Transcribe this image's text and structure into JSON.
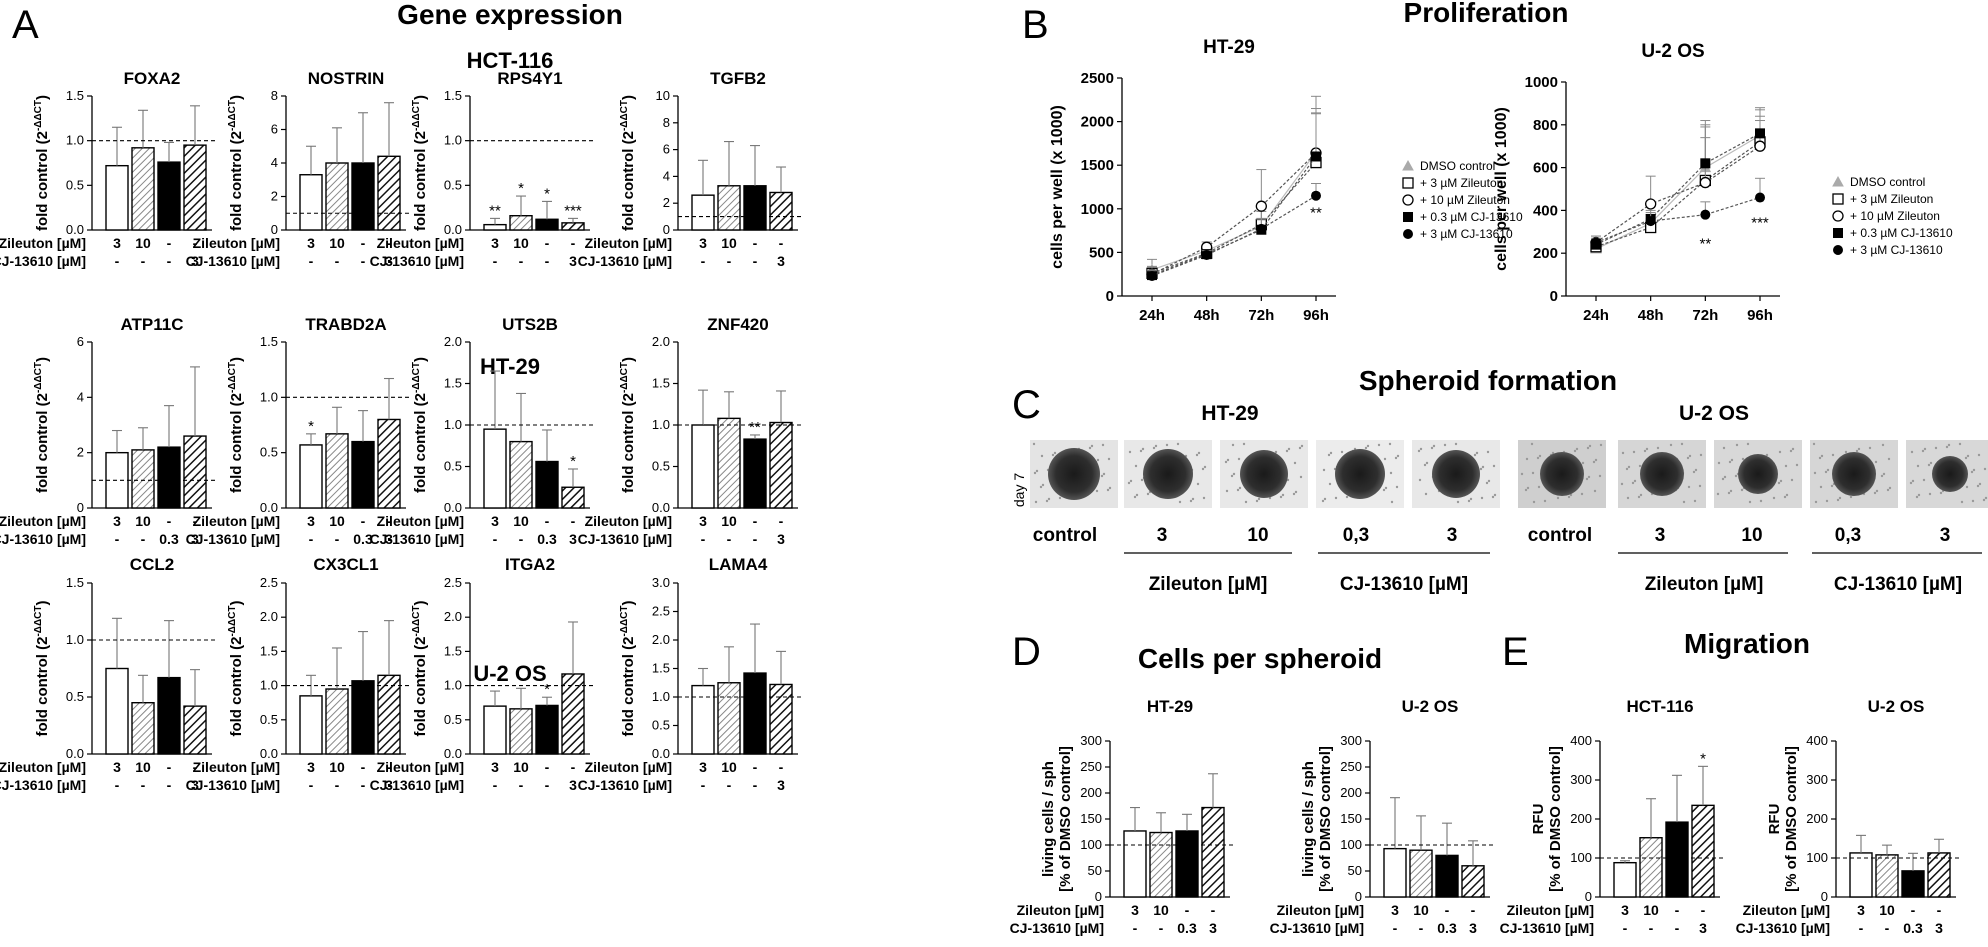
{
  "panel_letters": {
    "A": "A",
    "B": "B",
    "C": "C",
    "D": "D",
    "E": "E"
  },
  "titles": {
    "gene_expression": "Gene expression",
    "proliferation": "Proliferation",
    "spheroid": "Spheroid formation",
    "cells_per_spheroid": "Cells per spheroid",
    "migration": "Migration"
  },
  "group_titles": {
    "hct": "HCT-116",
    "ht": "HT-29",
    "uos": "U-2 OS"
  },
  "treat_labels": {
    "zileuton": "Zileuton [µM]",
    "cj": "CJ-13610 [µM]"
  },
  "ylabel_fold": "fold control (2",
  "ylabel_fold_sup": "-ΔΔCT",
  "ylabel_fold_end": ")",
  "ylabel_spher_1": "living cells / sph",
  "ylabel_spher_2": "[% of DMSO control]",
  "ylabel_mig_1": "RFU",
  "ylabel_mig_2": "[% of DMSO control]",
  "ylabel_prolif": "cells per well (x 1000)",
  "day7": "day 7",
  "spheroid_labels": {
    "control": "control",
    "z3": "3",
    "z10": "10",
    "c03": "0,3",
    "c3": "3",
    "zileuton": "Zileuton [µM]",
    "cj": "CJ-13610 [µM]"
  },
  "legend": [
    "DMSO control",
    "+ 3 µM Zileuton",
    "+ 10 µM Zileuton",
    "+ 0.3 µM CJ-13610",
    "+ 3 µM CJ-13610"
  ],
  "chart_data": [
    {
      "type": "bar",
      "title": "FOXA2",
      "ylim": [
        0,
        1.5
      ],
      "yticks": [
        "0.0",
        "0.5",
        "1.0",
        "1.5"
      ],
      "ref": 1.0,
      "values": [
        0.72,
        0.92,
        0.76,
        0.95
      ],
      "errors": [
        0.43,
        0.42,
        0.22,
        0.44
      ],
      "stars": [
        "",
        "",
        "",
        ""
      ],
      "treat": {
        "zileuton": [
          "3",
          "10",
          "-",
          "-"
        ],
        "cj": [
          "-",
          "-",
          "-",
          "3"
        ]
      }
    },
    {
      "type": "bar",
      "title": "NOSTRIN",
      "ylim": [
        0,
        8
      ],
      "yticks": [
        "0",
        "2",
        "4",
        "6",
        "8"
      ],
      "ref": 1.0,
      "values": [
        3.3,
        4.0,
        4.0,
        4.4
      ],
      "errors": [
        1.7,
        2.1,
        3.0,
        3.2
      ],
      "stars": [
        "",
        "",
        "",
        ""
      ],
      "treat": {
        "zileuton": [
          "3",
          "10",
          "-",
          "-"
        ],
        "cj": [
          "-",
          "-",
          "-",
          "3"
        ]
      }
    },
    {
      "type": "bar",
      "title": "RPS4Y1",
      "ylim": [
        0,
        1.5
      ],
      "yticks": [
        "0.0",
        "0.5",
        "1.0",
        "1.5"
      ],
      "ref": 1.0,
      "values": [
        0.06,
        0.16,
        0.12,
        0.08
      ],
      "errors": [
        0.07,
        0.22,
        0.2,
        0.05
      ],
      "stars": [
        "**",
        "*",
        "*",
        "***"
      ],
      "treat": {
        "zileuton": [
          "3",
          "10",
          "-",
          "-"
        ],
        "cj": [
          "-",
          "-",
          "-",
          "3"
        ]
      }
    },
    {
      "type": "bar",
      "title": "TGFB2",
      "ylim": [
        0,
        10
      ],
      "yticks": [
        "0",
        "2",
        "4",
        "6",
        "8",
        "10"
      ],
      "ref": 1.0,
      "values": [
        2.6,
        3.3,
        3.3,
        2.8
      ],
      "errors": [
        2.6,
        3.3,
        3.0,
        1.9
      ],
      "stars": [
        "",
        "",
        "",
        ""
      ],
      "treat": {
        "zileuton": [
          "3",
          "10",
          "-",
          "-"
        ],
        "cj": [
          "-",
          "-",
          "-",
          "3"
        ]
      }
    },
    {
      "type": "bar",
      "title": "ATP11C",
      "ylim": [
        0,
        6
      ],
      "yticks": [
        "0",
        "2",
        "4",
        "6"
      ],
      "ref": 1.0,
      "values": [
        2.0,
        2.1,
        2.2,
        2.6
      ],
      "errors": [
        0.8,
        0.8,
        1.5,
        2.5
      ],
      "stars": [
        "",
        "",
        "",
        ""
      ],
      "treat": {
        "zileuton": [
          "3",
          "10",
          "-",
          "-"
        ],
        "cj": [
          "-",
          "-",
          "0.3",
          "3"
        ]
      }
    },
    {
      "type": "bar",
      "title": "TRABD2A",
      "ylim": [
        0,
        1.5
      ],
      "yticks": [
        "0.0",
        "0.5",
        "1.0",
        "1.5"
      ],
      "ref": 1.0,
      "values": [
        0.57,
        0.67,
        0.6,
        0.8
      ],
      "errors": [
        0.1,
        0.24,
        0.28,
        0.37
      ],
      "stars": [
        "*",
        "",
        "",
        ""
      ],
      "treat": {
        "zileuton": [
          "3",
          "10",
          "-",
          "-"
        ],
        "cj": [
          "-",
          "-",
          "0.3",
          "3"
        ]
      }
    },
    {
      "type": "bar",
      "title": "UTS2B",
      "ylim": [
        0,
        2.0
      ],
      "yticks": [
        "0.0",
        "0.5",
        "1.0",
        "1.5",
        "2.0"
      ],
      "ref": 1.0,
      "values": [
        0.95,
        0.8,
        0.56,
        0.25
      ],
      "errors": [
        0.7,
        0.58,
        0.38,
        0.22
      ],
      "stars": [
        "",
        "",
        "",
        "*"
      ],
      "treat": {
        "zileuton": [
          "3",
          "10",
          "-",
          "-"
        ],
        "cj": [
          "-",
          "-",
          "0.3",
          "3"
        ]
      }
    },
    {
      "type": "bar",
      "title": "ZNF420",
      "ylim": [
        0,
        2.0
      ],
      "yticks": [
        "0.0",
        "0.5",
        "1.0",
        "1.5",
        "2.0"
      ],
      "ref": 1.0,
      "values": [
        1.0,
        1.08,
        0.83,
        1.03
      ],
      "errors": [
        0.42,
        0.32,
        0.05,
        0.38
      ],
      "stars": [
        "",
        "",
        "**",
        ""
      ],
      "treat": {
        "zileuton": [
          "3",
          "10",
          "-",
          "-"
        ],
        "cj": [
          "-",
          "-",
          "-",
          "3"
        ]
      }
    },
    {
      "type": "bar",
      "title": "CCL2",
      "ylim": [
        0,
        1.5
      ],
      "yticks": [
        "0.0",
        "0.5",
        "1.0",
        "1.5"
      ],
      "ref": 1.0,
      "values": [
        0.75,
        0.45,
        0.67,
        0.42
      ],
      "errors": [
        0.44,
        0.24,
        0.5,
        0.32
      ],
      "stars": [
        "",
        "",
        "",
        ""
      ],
      "treat": {
        "zileuton": [
          "3",
          "10",
          "-",
          "-"
        ],
        "cj": [
          "-",
          "-",
          "-",
          "3"
        ]
      }
    },
    {
      "type": "bar",
      "title": "CX3CL1",
      "ylim": [
        0,
        2.5
      ],
      "yticks": [
        "0.0",
        "0.5",
        "1.0",
        "1.5",
        "2.0",
        "2.5"
      ],
      "ref": 1.0,
      "values": [
        0.85,
        0.95,
        1.07,
        1.15
      ],
      "errors": [
        0.3,
        0.6,
        0.72,
        0.8
      ],
      "stars": [
        "",
        "",
        "",
        ""
      ],
      "treat": {
        "zileuton": [
          "3",
          "10",
          "-",
          "-"
        ],
        "cj": [
          "-",
          "-",
          "-",
          "3"
        ]
      }
    },
    {
      "type": "bar",
      "title": "ITGA2",
      "ylim": [
        0,
        2.5
      ],
      "yticks": [
        "0.0",
        "0.5",
        "1.0",
        "1.5",
        "2.0",
        "2.5"
      ],
      "ref": 1.0,
      "values": [
        0.7,
        0.66,
        0.71,
        1.17
      ],
      "errors": [
        0.22,
        0.3,
        0.12,
        0.76
      ],
      "stars": [
        "",
        "",
        "*",
        ""
      ],
      "treat": {
        "zileuton": [
          "3",
          "10",
          "-",
          "-"
        ],
        "cj": [
          "-",
          "-",
          "-",
          "3"
        ]
      }
    },
    {
      "type": "bar",
      "title": "LAMA4",
      "ylim": [
        0,
        3.0
      ],
      "yticks": [
        "0.0",
        "0.5",
        "1.0",
        "1.5",
        "2.0",
        "2.5",
        "3.0"
      ],
      "ref": 1.0,
      "values": [
        1.2,
        1.25,
        1.42,
        1.22
      ],
      "errors": [
        0.3,
        0.63,
        0.86,
        0.58
      ],
      "stars": [
        "",
        "",
        "",
        ""
      ],
      "treat": {
        "zileuton": [
          "3",
          "10",
          "-",
          "-"
        ],
        "cj": [
          "-",
          "-",
          "-",
          "3"
        ]
      }
    },
    {
      "type": "line",
      "title": "HT-29",
      "xlabel": "",
      "ylabel": "cells per well (x 1000)",
      "categories": [
        "24h",
        "48h",
        "72h",
        "96h"
      ],
      "ylim": [
        0,
        2500
      ],
      "yticks": [
        "0",
        "500",
        "1000",
        "1500",
        "2000",
        "2500"
      ],
      "series": [
        {
          "name": "DMSO control",
          "values": [
            300,
            520,
            800,
            1650
          ],
          "errors": [
            120,
            60,
            200,
            500
          ],
          "star": ""
        },
        {
          "name": "+ 3 µM Zileuton",
          "values": [
            260,
            490,
            820,
            1530
          ],
          "errors": [
            80,
            60,
            150,
            560
          ],
          "star": ""
        },
        {
          "name": "+ 10 µM Zileuton",
          "values": [
            250,
            560,
            1030,
            1640
          ],
          "errors": [
            80,
            60,
            420,
            650
          ],
          "star": ""
        },
        {
          "name": "+ 0.3 µM CJ-13610",
          "values": [
            240,
            480,
            760,
            1600
          ],
          "errors": [
            60,
            50,
            120,
            500
          ],
          "star": ""
        },
        {
          "name": "+ 3 µM CJ-13610",
          "values": [
            230,
            470,
            770,
            1150
          ],
          "errors": [
            60,
            50,
            120,
            140
          ],
          "star": "**"
        }
      ]
    },
    {
      "type": "line",
      "title": "U-2 OS",
      "xlabel": "",
      "ylabel": "cells per well (x 1000)",
      "categories": [
        "24h",
        "48h",
        "72h",
        "96h"
      ],
      "ylim": [
        0,
        1000
      ],
      "yticks": [
        "0",
        "200",
        "400",
        "600",
        "800",
        "1000"
      ],
      "series": [
        {
          "name": "DMSO control",
          "values": [
            220,
            340,
            600,
            750
          ],
          "errors": [
            30,
            40,
            200,
            120
          ],
          "star": ""
        },
        {
          "name": "+ 3 µM Zileuton",
          "values": [
            230,
            320,
            540,
            720
          ],
          "errors": [
            30,
            40,
            200,
            120
          ],
          "star": ""
        },
        {
          "name": "+ 10 µM Zileuton",
          "values": [
            250,
            430,
            530,
            700
          ],
          "errors": [
            30,
            130,
            260,
            120
          ],
          "star": ""
        },
        {
          "name": "+ 0.3 µM CJ-13610",
          "values": [
            240,
            360,
            620,
            760
          ],
          "errors": [
            30,
            40,
            200,
            120
          ],
          "star": ""
        },
        {
          "name": "+ 3 µM CJ-13610",
          "values": [
            250,
            350,
            380,
            460
          ],
          "errors": [
            30,
            40,
            60,
            90
          ],
          "star": "**|***"
        }
      ]
    },
    {
      "type": "bar",
      "title": "HT-29",
      "ylim": [
        0,
        300
      ],
      "yticks": [
        "0",
        "50",
        "100",
        "150",
        "200",
        "250",
        "300"
      ],
      "ref": 100,
      "values": [
        127,
        124,
        127,
        172
      ],
      "errors": [
        45,
        38,
        32,
        65
      ],
      "stars": [
        "",
        "",
        "",
        ""
      ],
      "treat": {
        "zileuton": [
          "3",
          "10",
          "-",
          "-"
        ],
        "cj": [
          "-",
          "-",
          "0.3",
          "3"
        ]
      }
    },
    {
      "type": "bar",
      "title": "U-2 OS",
      "ylim": [
        0,
        300
      ],
      "yticks": [
        "0",
        "50",
        "100",
        "150",
        "200",
        "250",
        "300"
      ],
      "ref": 100,
      "values": [
        93,
        90,
        80,
        60
      ],
      "errors": [
        98,
        66,
        62,
        48
      ],
      "stars": [
        "",
        "",
        "",
        ""
      ],
      "treat": {
        "zileuton": [
          "3",
          "10",
          "-",
          "-"
        ],
        "cj": [
          "-",
          "-",
          "0.3",
          "3"
        ]
      }
    },
    {
      "type": "bar",
      "title": "HCT-116",
      "ylim": [
        0,
        400
      ],
      "yticks": [
        "0",
        "100",
        "200",
        "300",
        "400"
      ],
      "ref": 100,
      "values": [
        88,
        152,
        192,
        235
      ],
      "errors": [
        5,
        100,
        120,
        100
      ],
      "stars": [
        "",
        "",
        "",
        "*"
      ],
      "treat": {
        "zileuton": [
          "3",
          "10",
          "-",
          "-"
        ],
        "cj": [
          "-",
          "-",
          "-",
          "3"
        ]
      }
    },
    {
      "type": "bar",
      "title": "U-2 OS",
      "ylim": [
        0,
        400
      ],
      "yticks": [
        "0",
        "100",
        "200",
        "300",
        "400"
      ],
      "ref": 100,
      "values": [
        113,
        108,
        67,
        113
      ],
      "errors": [
        45,
        25,
        45,
        35
      ],
      "stars": [
        "",
        "",
        "",
        ""
      ],
      "treat": {
        "zileuton": [
          "3",
          "10",
          "-",
          "-"
        ],
        "cj": [
          "-",
          "-",
          "0.3",
          "3"
        ]
      }
    }
  ]
}
